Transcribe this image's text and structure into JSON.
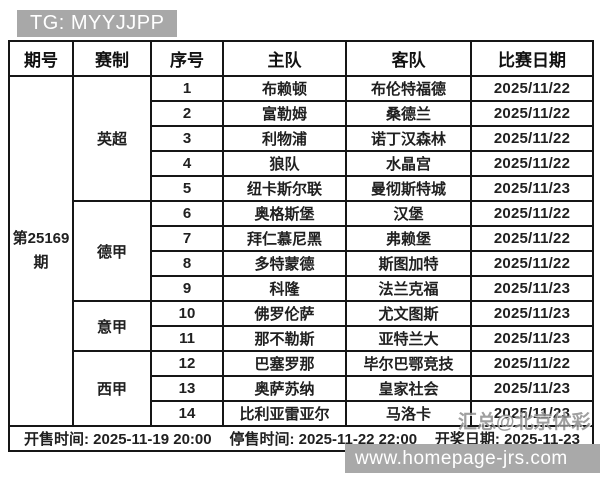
{
  "badge": {
    "label": "TG: MYYJJPP"
  },
  "table": {
    "issue": "第25169期",
    "headers": [
      "期号",
      "赛制",
      "序号",
      "主队",
      "客队",
      "比赛日期"
    ],
    "groups": [
      {
        "league": "英超",
        "matches": [
          {
            "no": "1",
            "home": "布赖顿",
            "away": "布伦特福德",
            "date": "2025/11/22"
          },
          {
            "no": "2",
            "home": "富勒姆",
            "away": "桑德兰",
            "date": "2025/11/22"
          },
          {
            "no": "3",
            "home": "利物浦",
            "away": "诺丁汉森林",
            "date": "2025/11/22"
          },
          {
            "no": "4",
            "home": "狼队",
            "away": "水晶宫",
            "date": "2025/11/22"
          },
          {
            "no": "5",
            "home": "纽卡斯尔联",
            "away": "曼彻斯特城",
            "date": "2025/11/23"
          }
        ]
      },
      {
        "league": "德甲",
        "matches": [
          {
            "no": "6",
            "home": "奥格斯堡",
            "away": "汉堡",
            "date": "2025/11/22"
          },
          {
            "no": "7",
            "home": "拜仁慕尼黑",
            "away": "弗赖堡",
            "date": "2025/11/22"
          },
          {
            "no": "8",
            "home": "多特蒙德",
            "away": "斯图加特",
            "date": "2025/11/22"
          },
          {
            "no": "9",
            "home": "科隆",
            "away": "法兰克福",
            "date": "2025/11/23"
          }
        ]
      },
      {
        "league": "意甲",
        "matches": [
          {
            "no": "10",
            "home": "佛罗伦萨",
            "away": "尤文图斯",
            "date": "2025/11/23"
          },
          {
            "no": "11",
            "home": "那不勒斯",
            "away": "亚特兰大",
            "date": "2025/11/23"
          }
        ]
      },
      {
        "league": "西甲",
        "matches": [
          {
            "no": "12",
            "home": "巴塞罗那",
            "away": "毕尔巴鄂竞技",
            "date": "2025/11/22"
          },
          {
            "no": "13",
            "home": "奥萨苏纳",
            "away": "皇家社会",
            "date": "2025/11/23"
          },
          {
            "no": "14",
            "home": "比利亚雷亚尔",
            "away": "马洛卡",
            "date": "2025/11/23"
          }
        ]
      }
    ],
    "footer": {
      "sale_start": "开售时间: 2025-11-19 20:00",
      "sale_end": "停售时间: 2025-11-22 22:00",
      "draw_date": "开奖日期: 2025-11-23"
    }
  },
  "watermark": {
    "overlay": "汇总@北京体彩",
    "site": "www.homepage-jrs.com"
  },
  "colors": {
    "badge_bg": "#a8a8a8",
    "url_bar_bg": "#a9a9a9",
    "border": "#161616"
  }
}
